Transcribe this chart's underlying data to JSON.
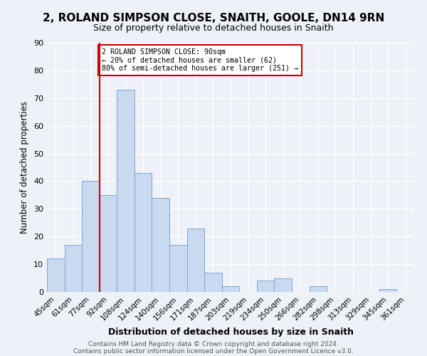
{
  "title": "2, ROLAND SIMPSON CLOSE, SNAITH, GOOLE, DN14 9RN",
  "subtitle": "Size of property relative to detached houses in Snaith",
  "xlabel": "Distribution of detached houses by size in Snaith",
  "ylabel": "Number of detached properties",
  "bar_labels": [
    "45sqm",
    "61sqm",
    "77sqm",
    "92sqm",
    "108sqm",
    "124sqm",
    "140sqm",
    "156sqm",
    "171sqm",
    "187sqm",
    "203sqm",
    "219sqm",
    "234sqm",
    "250sqm",
    "266sqm",
    "282sqm",
    "298sqm",
    "313sqm",
    "329sqm",
    "345sqm",
    "361sqm"
  ],
  "bar_values": [
    12,
    17,
    40,
    35,
    73,
    43,
    34,
    17,
    23,
    7,
    2,
    0,
    4,
    5,
    0,
    2,
    0,
    0,
    0,
    1,
    0
  ],
  "bar_color": "#c9d9f0",
  "bar_edge_color": "#7aa8d4",
  "ylim": [
    0,
    90
  ],
  "yticks": [
    0,
    10,
    20,
    30,
    40,
    50,
    60,
    70,
    80,
    90
  ],
  "vline_x_index": 3,
  "vline_color": "#cc0000",
  "annotation_title": "2 ROLAND SIMPSON CLOSE: 90sqm",
  "annotation_line1": "← 20% of detached houses are smaller (62)",
  "annotation_line2": "80% of semi-detached houses are larger (251) →",
  "annotation_box_color": "#ffffff",
  "annotation_box_edge": "#cc0000",
  "footer1": "Contains HM Land Registry data © Crown copyright and database right 2024.",
  "footer2": "Contains public sector information licensed under the Open Government Licence v3.0.",
  "background_color": "#eef2f8"
}
